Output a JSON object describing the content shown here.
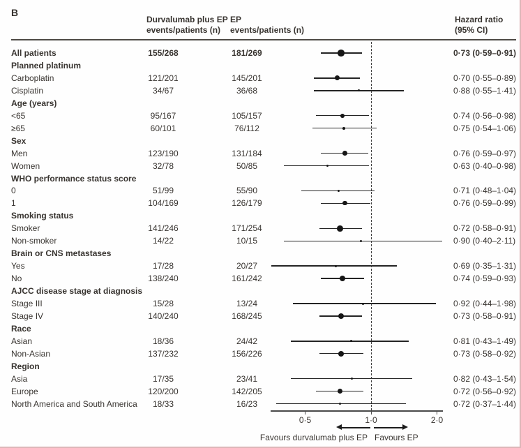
{
  "panel_label": "B",
  "columns": {
    "treatment": {
      "line1": "Durvalumab plus EP",
      "line2": "events/patients (n)"
    },
    "control": {
      "line1": "EP",
      "line2": "events/patients (n)"
    },
    "hazard": {
      "line1": "Hazard ratio",
      "line2": "(95% CI)"
    }
  },
  "footer": {
    "favours_left": "Favours durvalumab plus EP",
    "favours_right": "Favours EP"
  },
  "chart_data": {
    "type": "scatter",
    "subtype": "forest-plot",
    "xscale": "log2",
    "xlim": [
      0.35,
      2.2
    ],
    "reference_value": 1.0,
    "xtick_values": [
      0.5,
      1.0,
      2.0
    ],
    "xtick_labels": [
      "0·5",
      "1·0",
      "2·0"
    ],
    "grid": false,
    "rows": [
      {
        "label": "All patients",
        "bold": true,
        "treatment": "155/268",
        "control": "181/269",
        "hr": 0.73,
        "low": 0.59,
        "high": 0.91,
        "hr_text": "0·73 (0·59–0·91)"
      },
      {
        "label": "Planned platinum",
        "group": true
      },
      {
        "label": "Carboplatin",
        "treatment": "121/201",
        "control": "145/201",
        "hr": 0.7,
        "low": 0.55,
        "high": 0.89,
        "hr_text": "0·70 (0·55–0·89)"
      },
      {
        "label": "Cisplatin",
        "treatment": "34/67",
        "control": "36/68",
        "hr": 0.88,
        "low": 0.55,
        "high": 1.41,
        "hr_text": "0·88 (0·55–1·41)"
      },
      {
        "label": "Age (years)",
        "group": true
      },
      {
        "label": "<65",
        "treatment": "95/167",
        "control": "105/157",
        "hr": 0.74,
        "low": 0.56,
        "high": 0.98,
        "hr_text": "0·74 (0·56–0·98)"
      },
      {
        "label": "≥65",
        "treatment": "60/101",
        "control": "76/112",
        "hr": 0.75,
        "low": 0.54,
        "high": 1.06,
        "hr_text": "0·75 (0·54–1·06)"
      },
      {
        "label": "Sex",
        "group": true
      },
      {
        "label": "Men",
        "treatment": "123/190",
        "control": "131/184",
        "hr": 0.76,
        "low": 0.59,
        "high": 0.97,
        "hr_text": "0·76 (0·59–0·97)"
      },
      {
        "label": "Women",
        "treatment": "32/78",
        "control": "50/85",
        "hr": 0.63,
        "low": 0.4,
        "high": 0.98,
        "hr_text": "0·63 (0·40–0·98)"
      },
      {
        "label": "WHO performance status score",
        "group": true
      },
      {
        "label": "0",
        "treatment": "51/99",
        "control": "55/90",
        "hr": 0.71,
        "low": 0.48,
        "high": 1.04,
        "hr_text": "0·71 (0·48–1·04)"
      },
      {
        "label": "1",
        "treatment": "104/169",
        "control": "126/179",
        "hr": 0.76,
        "low": 0.59,
        "high": 0.99,
        "hr_text": "0·76 (0·59–0·99)"
      },
      {
        "label": "Smoking status",
        "group": true
      },
      {
        "label": "Smoker",
        "treatment": "141/246",
        "control": "171/254",
        "hr": 0.72,
        "low": 0.58,
        "high": 0.91,
        "hr_text": "0·72 (0·58–0·91)"
      },
      {
        "label": "Non-smoker",
        "treatment": "14/22",
        "control": "10/15",
        "hr": 0.9,
        "low": 0.4,
        "high": 2.11,
        "hr_text": "0·90 (0·40–2·11)"
      },
      {
        "label": "Brain or CNS metastases",
        "group": true
      },
      {
        "label": "Yes",
        "treatment": "17/28",
        "control": "20/27",
        "hr": 0.69,
        "low": 0.35,
        "high": 1.31,
        "hr_text": "0·69 (0·35–1·31)"
      },
      {
        "label": "No",
        "treatment": "138/240",
        "control": "161/242",
        "hr": 0.74,
        "low": 0.59,
        "high": 0.93,
        "hr_text": "0·74 (0·59–0·93)"
      },
      {
        "label": "AJCC disease stage at diagnosis",
        "group": true
      },
      {
        "label": "Stage III",
        "treatment": "15/28",
        "control": "13/24",
        "hr": 0.92,
        "low": 0.44,
        "high": 1.98,
        "hr_text": "0·92 (0·44–1·98)"
      },
      {
        "label": "Stage IV",
        "treatment": "140/240",
        "control": "168/245",
        "hr": 0.73,
        "low": 0.58,
        "high": 0.91,
        "hr_text": "0·73 (0·58–0·91)"
      },
      {
        "label": "Race",
        "group": true
      },
      {
        "label": "Asian",
        "treatment": "18/36",
        "control": "24/42",
        "hr": 0.81,
        "low": 0.43,
        "high": 1.49,
        "hr_text": "0·81 (0·43–1·49)"
      },
      {
        "label": "Non-Asian",
        "treatment": "137/232",
        "control": "156/226",
        "hr": 0.73,
        "low": 0.58,
        "high": 0.92,
        "hr_text": "0·73 (0·58–0·92)"
      },
      {
        "label": "Region",
        "group": true
      },
      {
        "label": "Asia",
        "treatment": "17/35",
        "control": "23/41",
        "hr": 0.82,
        "low": 0.43,
        "high": 1.54,
        "hr_text": "0·82 (0·43–1·54)"
      },
      {
        "label": "Europe",
        "treatment": "120/200",
        "control": "142/205",
        "hr": 0.72,
        "low": 0.56,
        "high": 0.92,
        "hr_text": "0·72 (0·56–0·92)"
      },
      {
        "label": "North America and South America",
        "treatment": "18/33",
        "control": "16/23",
        "hr": 0.72,
        "low": 0.37,
        "high": 1.44,
        "hr_text": "0·72 (0·37–1·44)"
      }
    ]
  },
  "colors": {
    "text": "#383430",
    "line": "#242424",
    "marker": "#161616",
    "reference_line": "#3a3a3a",
    "page_border": "#ddb6b8"
  }
}
